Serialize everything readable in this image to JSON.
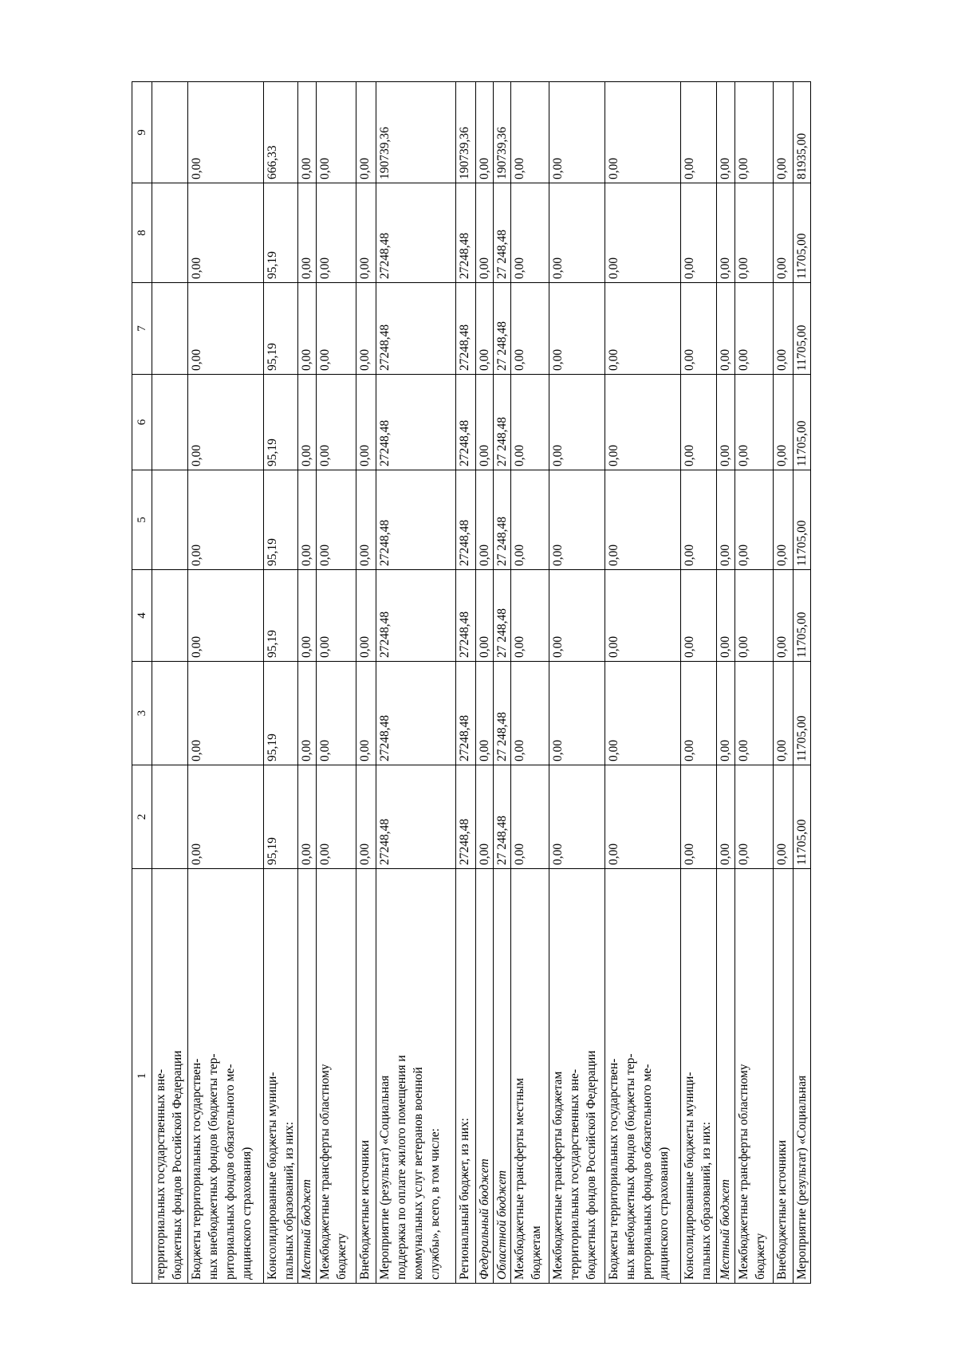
{
  "table": {
    "header": [
      "1",
      "2",
      "3",
      "4",
      "5",
      "6",
      "7",
      "8",
      "9"
    ],
    "rows": [
      {
        "label": "территориальных государственных вне-\nбюджетных фондов Российской Федерации",
        "italic": false,
        "values": [
          "",
          "",
          "",
          "",
          "",
          "",
          "",
          ""
        ]
      },
      {
        "label": "Бюджеты территориальных государствен-\nных внебюджетных фондов (бюджеты тер-\nриториальных фондов обязательного ме-\nдицинского страхования)",
        "italic": false,
        "values": [
          "0,00",
          "0,00",
          "0,00",
          "0,00",
          "0,00",
          "0,00",
          "0,00",
          "0,00"
        ]
      },
      {
        "label": "Консолидированные бюджеты муници-\nпальных образований, из них:",
        "italic": false,
        "values": [
          "95,19",
          "95,19",
          "95,19",
          "95,19",
          "95,19",
          "95,19",
          "95,19",
          "666,33"
        ]
      },
      {
        "label": "Местный бюджет",
        "italic": true,
        "values": [
          "0,00",
          "0,00",
          "0,00",
          "0,00",
          "0,00",
          "0,00",
          "0,00",
          "0,00"
        ]
      },
      {
        "label": "Межбюджетные трансферты областному\nбюджету",
        "italic": false,
        "values": [
          "0,00",
          "0,00",
          "0,00",
          "0,00",
          "0,00",
          "0,00",
          "0,00",
          "0,00"
        ]
      },
      {
        "label": "Внебюджетные источники",
        "italic": false,
        "values": [
          "0,00",
          "0,00",
          "0,00",
          "0,00",
          "0,00",
          "0,00",
          "0,00",
          "0,00"
        ]
      },
      {
        "label": "Мероприятие (результат) «Социальная\nподдержка по оплате жилого помещения и\nкоммунальных услуг ветеранов военной\nслужбы», всего, в том числе:",
        "italic": false,
        "values": [
          "27248,48",
          "27248,48",
          "27248,48",
          "27248,48",
          "27248,48",
          "27248,48",
          "27248,48",
          "190739,36"
        ]
      },
      {
        "label": "Региональный бюджет, из них:",
        "italic": false,
        "values": [
          "27248,48",
          "27248,48",
          "27248,48",
          "27248,48",
          "27248,48",
          "27248,48",
          "27248,48",
          "190739,36"
        ]
      },
      {
        "label": "Федеральный бюджет",
        "italic": true,
        "values": [
          "0,00",
          "0,00",
          "0,00",
          "0,00",
          "0,00",
          "0,00",
          "0,00",
          "0,00"
        ]
      },
      {
        "label": "Областной бюджет",
        "italic": true,
        "values": [
          "27 248,48",
          "27 248,48",
          "27 248,48",
          "27 248,48",
          "27 248,48",
          "27 248,48",
          "27 248,48",
          "190739,36"
        ]
      },
      {
        "label": "Межбюджетные трансферты местным\nбюджетам",
        "italic": false,
        "values": [
          "0,00",
          "0,00",
          "0,00",
          "0,00",
          "0,00",
          "0,00",
          "0,00",
          "0,00"
        ]
      },
      {
        "label": "Межбюджетные трансферты бюджетам\nтерриториальных государственных вне-\nбюджетных фондов Российской Федерации",
        "italic": false,
        "values": [
          "0,00",
          "0,00",
          "0,00",
          "0,00",
          "0,00",
          "0,00",
          "0,00",
          "0,00"
        ]
      },
      {
        "label": "Бюджеты территориальных государствен-\nных внебюджетных фондов (бюджеты тер-\nриториальных фондов обязательного ме-\nдицинского страхования)",
        "italic": false,
        "values": [
          "0,00",
          "0,00",
          "0,00",
          "0,00",
          "0,00",
          "0,00",
          "0,00",
          "0,00"
        ]
      },
      {
        "label": "Консолидированные бюджеты муници-\nпальных образований, из них:",
        "italic": false,
        "values": [
          "0,00",
          "0,00",
          "0,00",
          "0,00",
          "0,00",
          "0,00",
          "0,00",
          "0,00"
        ]
      },
      {
        "label": "Местный бюджет",
        "italic": true,
        "values": [
          "0,00",
          "0,00",
          "0,00",
          "0,00",
          "0,00",
          "0,00",
          "0,00",
          "0,00"
        ]
      },
      {
        "label": "Межбюджетные трансферты областному\nбюджету",
        "italic": false,
        "values": [
          "0,00",
          "0,00",
          "0,00",
          "0,00",
          "0,00",
          "0,00",
          "0,00",
          "0,00"
        ]
      },
      {
        "label": "Внебюджетные источники",
        "italic": false,
        "values": [
          "0,00",
          "0,00",
          "0,00",
          "0,00",
          "0,00",
          "0,00",
          "0,00",
          "0,00"
        ]
      },
      {
        "label": "Мероприятие (результат) «Социальная",
        "italic": false,
        "values": [
          "11705,00",
          "11705,00",
          "11705,00",
          "11705,00",
          "11705,00",
          "11705,00",
          "11705,00",
          "81935,00"
        ]
      }
    ]
  }
}
